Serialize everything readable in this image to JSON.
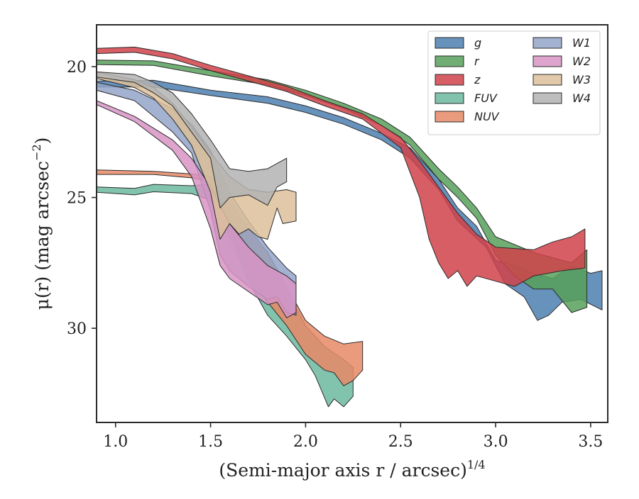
{
  "chart_data": {
    "type": "area",
    "xlabel": "(Semi-major axis r / arcsec)",
    "xlabel_sup": "1/4",
    "ylabel": "μ(r) (mag arcsec",
    "ylabel_sup": "−2",
    "ylabel_end": ")",
    "xlim": [
      0.9,
      3.59
    ],
    "ylim": [
      33.6,
      18.4
    ],
    "y_inverted": true,
    "xticks": [
      1.0,
      1.5,
      2.0,
      2.5,
      3.0,
      3.5
    ],
    "xtick_labels": [
      "1.0",
      "1.5",
      "2.0",
      "2.5",
      "3.0",
      "3.5"
    ],
    "yticks": [
      20,
      25,
      30
    ],
    "ytick_labels": [
      "20",
      "25",
      "30"
    ],
    "grid": false,
    "legend_position": "top-right",
    "legend_columns": 2,
    "series": [
      {
        "name": "g",
        "color": "#4c7fb0",
        "upper": [
          [
            0.9,
            20.55
          ],
          [
            1.2,
            20.52
          ],
          [
            1.5,
            20.9
          ],
          [
            1.8,
            21.15
          ],
          [
            2.0,
            21.5
          ],
          [
            2.2,
            21.95
          ],
          [
            2.4,
            22.55
          ],
          [
            2.55,
            23.1
          ],
          [
            2.7,
            24.3
          ],
          [
            2.8,
            25.4
          ],
          [
            2.9,
            26.1
          ],
          [
            3.0,
            27.4
          ],
          [
            3.1,
            27.6
          ],
          [
            3.2,
            27.9
          ],
          [
            3.3,
            28.1
          ],
          [
            3.4,
            27.6
          ],
          [
            3.5,
            27.9
          ],
          [
            3.56,
            27.8
          ]
        ],
        "lower": [
          [
            3.56,
            29.3
          ],
          [
            3.45,
            28.9
          ],
          [
            3.35,
            29.0
          ],
          [
            3.28,
            29.5
          ],
          [
            3.22,
            29.7
          ],
          [
            3.15,
            28.8
          ],
          [
            3.05,
            28.3
          ],
          [
            2.95,
            26.9
          ],
          [
            2.8,
            25.9
          ],
          [
            2.7,
            24.7
          ],
          [
            2.55,
            23.5
          ],
          [
            2.4,
            22.8
          ],
          [
            2.2,
            22.2
          ],
          [
            2.0,
            21.75
          ],
          [
            1.8,
            21.4
          ],
          [
            1.5,
            21.1
          ],
          [
            1.2,
            20.78
          ],
          [
            0.9,
            20.78
          ]
        ]
      },
      {
        "name": "r",
        "color": "#57a05a",
        "upper": [
          [
            0.9,
            19.75
          ],
          [
            1.2,
            19.78
          ],
          [
            1.5,
            20.15
          ],
          [
            1.8,
            20.5
          ],
          [
            2.0,
            20.9
          ],
          [
            2.2,
            21.4
          ],
          [
            2.4,
            22.0
          ],
          [
            2.55,
            22.7
          ],
          [
            2.7,
            23.9
          ],
          [
            2.8,
            24.6
          ],
          [
            2.9,
            25.4
          ],
          [
            3.0,
            26.5
          ],
          [
            3.2,
            27.1
          ],
          [
            3.4,
            27.5
          ],
          [
            3.48,
            27.0
          ]
        ],
        "lower": [
          [
            3.48,
            29.2
          ],
          [
            3.4,
            29.4
          ],
          [
            3.3,
            28.5
          ],
          [
            3.2,
            28.5
          ],
          [
            3.1,
            28.0
          ],
          [
            3.0,
            27.2
          ],
          [
            2.9,
            25.8
          ],
          [
            2.8,
            25.0
          ],
          [
            2.7,
            24.3
          ],
          [
            2.55,
            23.0
          ],
          [
            2.4,
            22.25
          ],
          [
            2.2,
            21.6
          ],
          [
            2.0,
            21.1
          ],
          [
            1.8,
            20.7
          ],
          [
            1.5,
            20.35
          ],
          [
            1.2,
            19.95
          ],
          [
            0.9,
            19.92
          ]
        ]
      },
      {
        "name": "z",
        "color": "#d0424a",
        "upper": [
          [
            0.9,
            19.3
          ],
          [
            1.1,
            19.25
          ],
          [
            1.3,
            19.5
          ],
          [
            1.5,
            19.95
          ],
          [
            1.7,
            20.35
          ],
          [
            1.9,
            20.75
          ],
          [
            2.1,
            21.3
          ],
          [
            2.3,
            21.8
          ],
          [
            2.5,
            22.7
          ],
          [
            2.6,
            23.6
          ],
          [
            2.7,
            24.6
          ],
          [
            2.8,
            25.6
          ],
          [
            2.9,
            26.4
          ],
          [
            3.0,
            26.9
          ],
          [
            3.2,
            27.0
          ],
          [
            3.3,
            26.7
          ],
          [
            3.4,
            26.5
          ],
          [
            3.47,
            26.2
          ]
        ],
        "lower": [
          [
            3.47,
            27.7
          ],
          [
            3.35,
            27.8
          ],
          [
            3.2,
            28.0
          ],
          [
            3.1,
            28.4
          ],
          [
            3.0,
            28.2
          ],
          [
            2.9,
            28.0
          ],
          [
            2.85,
            28.4
          ],
          [
            2.8,
            27.8
          ],
          [
            2.75,
            28.1
          ],
          [
            2.7,
            27.5
          ],
          [
            2.65,
            26.6
          ],
          [
            2.6,
            25.0
          ],
          [
            2.5,
            23.1
          ],
          [
            2.3,
            22.0
          ],
          [
            2.1,
            21.5
          ],
          [
            1.9,
            20.95
          ],
          [
            1.7,
            20.55
          ],
          [
            1.5,
            20.15
          ],
          [
            1.3,
            19.7
          ],
          [
            1.1,
            19.45
          ],
          [
            0.9,
            19.5
          ]
        ]
      },
      {
        "name": "FUV",
        "color": "#6cb8a0",
        "upper": [
          [
            0.9,
            24.6
          ],
          [
            1.1,
            24.65
          ],
          [
            1.2,
            24.5
          ],
          [
            1.4,
            24.55
          ],
          [
            1.5,
            24.5
          ],
          [
            1.6,
            25.3
          ],
          [
            1.7,
            26.4
          ],
          [
            1.8,
            27.2
          ],
          [
            1.9,
            28.6
          ],
          [
            2.0,
            29.9
          ],
          [
            2.1,
            30.7
          ],
          [
            2.2,
            31.2
          ],
          [
            2.25,
            31.5
          ]
        ],
        "lower": [
          [
            2.25,
            32.6
          ],
          [
            2.2,
            33.0
          ],
          [
            2.15,
            32.7
          ],
          [
            2.12,
            33.0
          ],
          [
            2.05,
            31.8
          ],
          [
            2.0,
            31.2
          ],
          [
            1.9,
            30.3
          ],
          [
            1.8,
            29.5
          ],
          [
            1.7,
            28.2
          ],
          [
            1.6,
            26.5
          ],
          [
            1.5,
            25.1
          ],
          [
            1.4,
            24.85
          ],
          [
            1.2,
            24.78
          ],
          [
            1.1,
            24.9
          ],
          [
            0.9,
            24.8
          ]
        ]
      },
      {
        "name": "NUV",
        "color": "#e88a66",
        "upper": [
          [
            0.9,
            23.95
          ],
          [
            1.2,
            24.0
          ],
          [
            1.4,
            24.1
          ],
          [
            1.5,
            24.2
          ],
          [
            1.6,
            25.2
          ],
          [
            1.7,
            26.2
          ],
          [
            1.8,
            27.1
          ],
          [
            1.9,
            28.4
          ],
          [
            2.0,
            29.7
          ],
          [
            2.1,
            30.3
          ],
          [
            2.2,
            30.6
          ],
          [
            2.3,
            30.5
          ]
        ],
        "lower": [
          [
            2.3,
            31.6
          ],
          [
            2.25,
            32.0
          ],
          [
            2.2,
            32.2
          ],
          [
            2.15,
            31.7
          ],
          [
            2.1,
            31.6
          ],
          [
            2.0,
            31.0
          ],
          [
            1.9,
            29.9
          ],
          [
            1.8,
            29.0
          ],
          [
            1.7,
            27.8
          ],
          [
            1.6,
            26.1
          ],
          [
            1.5,
            24.4
          ],
          [
            1.4,
            24.25
          ],
          [
            1.2,
            24.12
          ],
          [
            0.9,
            24.12
          ]
        ]
      },
      {
        "name": "W1",
        "color": "#93a5c8",
        "upper": [
          [
            0.9,
            20.6
          ],
          [
            1.1,
            20.9
          ],
          [
            1.3,
            21.6
          ],
          [
            1.4,
            22.2
          ],
          [
            1.5,
            23.2
          ],
          [
            1.6,
            24.8
          ],
          [
            1.7,
            25.9
          ],
          [
            1.8,
            26.9
          ],
          [
            1.9,
            27.7
          ],
          [
            1.95,
            28.0
          ]
        ],
        "lower": [
          [
            1.95,
            29.5
          ],
          [
            1.9,
            29.4
          ],
          [
            1.85,
            28.8
          ],
          [
            1.8,
            28.9
          ],
          [
            1.7,
            28.4
          ],
          [
            1.6,
            27.8
          ],
          [
            1.55,
            27.2
          ],
          [
            1.5,
            25.5
          ],
          [
            1.4,
            23.3
          ],
          [
            1.3,
            22.5
          ],
          [
            1.1,
            21.3
          ],
          [
            0.9,
            20.9
          ]
        ]
      },
      {
        "name": "W2",
        "color": "#d894c4",
        "upper": [
          [
            0.9,
            21.3
          ],
          [
            1.1,
            21.9
          ],
          [
            1.3,
            22.8
          ],
          [
            1.4,
            23.5
          ],
          [
            1.5,
            24.6
          ],
          [
            1.6,
            26.0
          ],
          [
            1.7,
            26.9
          ],
          [
            1.8,
            27.6
          ],
          [
            1.9,
            28.0
          ],
          [
            1.95,
            28.3
          ]
        ],
        "lower": [
          [
            1.95,
            29.4
          ],
          [
            1.9,
            29.6
          ],
          [
            1.85,
            29.0
          ],
          [
            1.8,
            29.1
          ],
          [
            1.7,
            28.6
          ],
          [
            1.6,
            28.1
          ],
          [
            1.55,
            27.6
          ],
          [
            1.5,
            26.2
          ],
          [
            1.4,
            24.2
          ],
          [
            1.3,
            23.2
          ],
          [
            1.1,
            22.1
          ],
          [
            0.9,
            21.45
          ]
        ]
      },
      {
        "name": "W3",
        "color": "#dcc09a",
        "upper": [
          [
            0.9,
            20.2
          ],
          [
            1.1,
            20.5
          ],
          [
            1.2,
            20.8
          ],
          [
            1.3,
            21.4
          ],
          [
            1.4,
            22.3
          ],
          [
            1.5,
            23.3
          ],
          [
            1.6,
            24.2
          ],
          [
            1.7,
            24.7
          ],
          [
            1.8,
            24.8
          ],
          [
            1.9,
            24.7
          ],
          [
            1.95,
            24.8
          ]
        ],
        "lower": [
          [
            1.95,
            25.9
          ],
          [
            1.88,
            26.0
          ],
          [
            1.85,
            25.4
          ],
          [
            1.8,
            26.6
          ],
          [
            1.75,
            26.5
          ],
          [
            1.7,
            26.2
          ],
          [
            1.65,
            26.4
          ],
          [
            1.6,
            26.0
          ],
          [
            1.55,
            26.6
          ],
          [
            1.5,
            24.8
          ],
          [
            1.4,
            23.0
          ],
          [
            1.3,
            22.0
          ],
          [
            1.2,
            21.2
          ],
          [
            1.1,
            20.8
          ],
          [
            0.9,
            20.45
          ]
        ]
      },
      {
        "name": "W4",
        "color": "#b3b3b3",
        "upper": [
          [
            0.9,
            20.2
          ],
          [
            1.1,
            20.3
          ],
          [
            1.2,
            20.6
          ],
          [
            1.3,
            21.0
          ],
          [
            1.4,
            21.8
          ],
          [
            1.5,
            22.8
          ],
          [
            1.6,
            23.9
          ],
          [
            1.7,
            24.0
          ],
          [
            1.8,
            23.9
          ],
          [
            1.9,
            23.5
          ]
        ],
        "lower": [
          [
            1.9,
            24.4
          ],
          [
            1.85,
            24.6
          ],
          [
            1.8,
            25.3
          ],
          [
            1.75,
            25.1
          ],
          [
            1.7,
            24.9
          ],
          [
            1.6,
            25.0
          ],
          [
            1.55,
            25.4
          ],
          [
            1.5,
            23.5
          ],
          [
            1.4,
            22.5
          ],
          [
            1.3,
            21.5
          ],
          [
            1.2,
            21.0
          ],
          [
            1.1,
            20.6
          ],
          [
            0.9,
            20.4
          ]
        ]
      }
    ]
  }
}
